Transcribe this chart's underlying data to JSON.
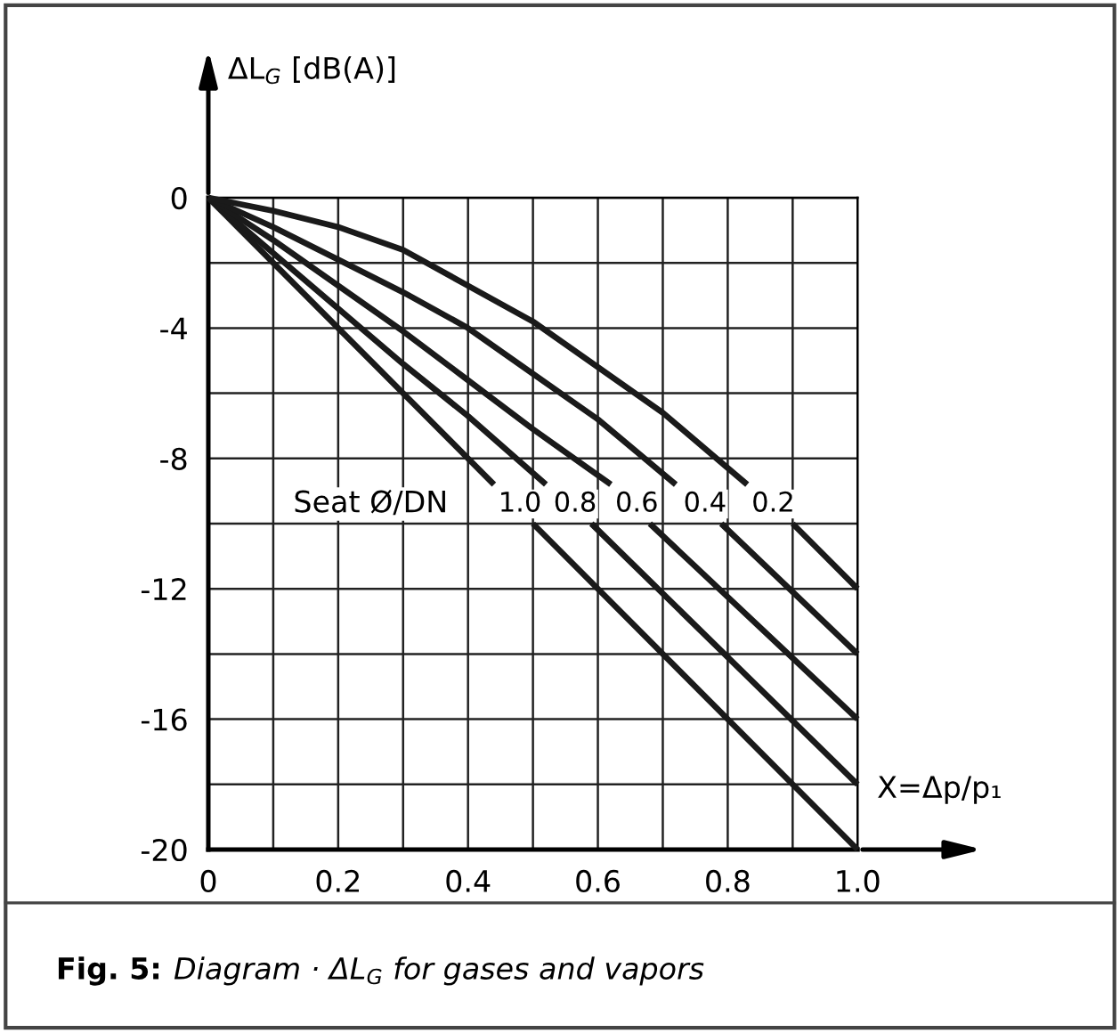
{
  "chart_data": {
    "type": "line",
    "title": "Fig. 5:",
    "subtitle": "Diagram · ΔL$_{G}$ for gases and vapors",
    "ylabel": "ΔL$_{G}$ [dB(A)]",
    "xlabel": "X=Δp/p₁",
    "legend_title": "Seat Ø/DN",
    "xlim": [
      0,
      1
    ],
    "ylim": [
      -20,
      0
    ],
    "xticks": [
      0,
      {
        "value": 0.1,
        "label": null
      },
      0.2,
      {
        "value": 0.3,
        "label": null
      },
      0.4,
      {
        "value": 0.5,
        "label": null
      },
      0.6,
      {
        "value": 0.7,
        "label": null
      },
      0.8,
      {
        "value": 0.9,
        "label": null
      },
      {
        "value": 1,
        "label": "1.0"
      }
    ],
    "yticks": [
      -20,
      {
        "value": -18,
        "label": null
      },
      -16,
      {
        "value": -14,
        "label": null
      },
      -12,
      {
        "value": -10,
        "label": null
      },
      -8,
      {
        "value": -6,
        "label": null
      },
      -4,
      {
        "value": -2,
        "label": null
      },
      0
    ],
    "grid": true,
    "legend": false,
    "marker": "none",
    "line_style": "solid",
    "series": [
      {
        "name": "1.0",
        "color": "#1a1a1a",
        "x": [
          0,
          0.44,
          0.47,
          0.5,
          1
        ],
        "values": [
          0,
          -8.8,
          null,
          -10,
          -20
        ]
      },
      {
        "name": "0.8",
        "color": "#1a1a1a",
        "x": [
          0,
          0.1,
          0.2,
          0.3,
          0.4,
          0.52,
          0.555,
          0.59,
          1
        ],
        "values": [
          0,
          -1.7,
          -3.4,
          -5.1,
          -6.7,
          -8.8,
          null,
          -10,
          -18
        ]
      },
      {
        "name": "0.6",
        "color": "#1a1a1a",
        "x": [
          0,
          0.1,
          0.2,
          0.3,
          0.4,
          0.5,
          0.62,
          0.65,
          0.68,
          1
        ],
        "values": [
          0,
          -1.3,
          -2.7,
          -4.1,
          -5.6,
          -7.1,
          -8.8,
          null,
          -10,
          -16
        ]
      },
      {
        "name": "0.4",
        "color": "#1a1a1a",
        "x": [
          0,
          0.1,
          0.2,
          0.3,
          0.4,
          0.5,
          0.6,
          0.72,
          0.755,
          0.79,
          1
        ],
        "values": [
          0,
          -0.9,
          -1.9,
          -2.9,
          -4,
          -5.4,
          -6.8,
          -8.8,
          null,
          -10,
          -14
        ]
      },
      {
        "name": "0.2",
        "color": "#1a1a1a",
        "x": [
          0,
          0.1,
          0.2,
          0.3,
          0.4,
          0.5,
          0.6,
          0.7,
          0.83,
          0.86,
          0.9,
          1
        ],
        "values": [
          0,
          -0.4,
          -0.9,
          -1.6,
          -2.7,
          -3.8,
          -5.2,
          -6.6,
          -8.8,
          null,
          -10,
          -12
        ]
      }
    ]
  }
}
